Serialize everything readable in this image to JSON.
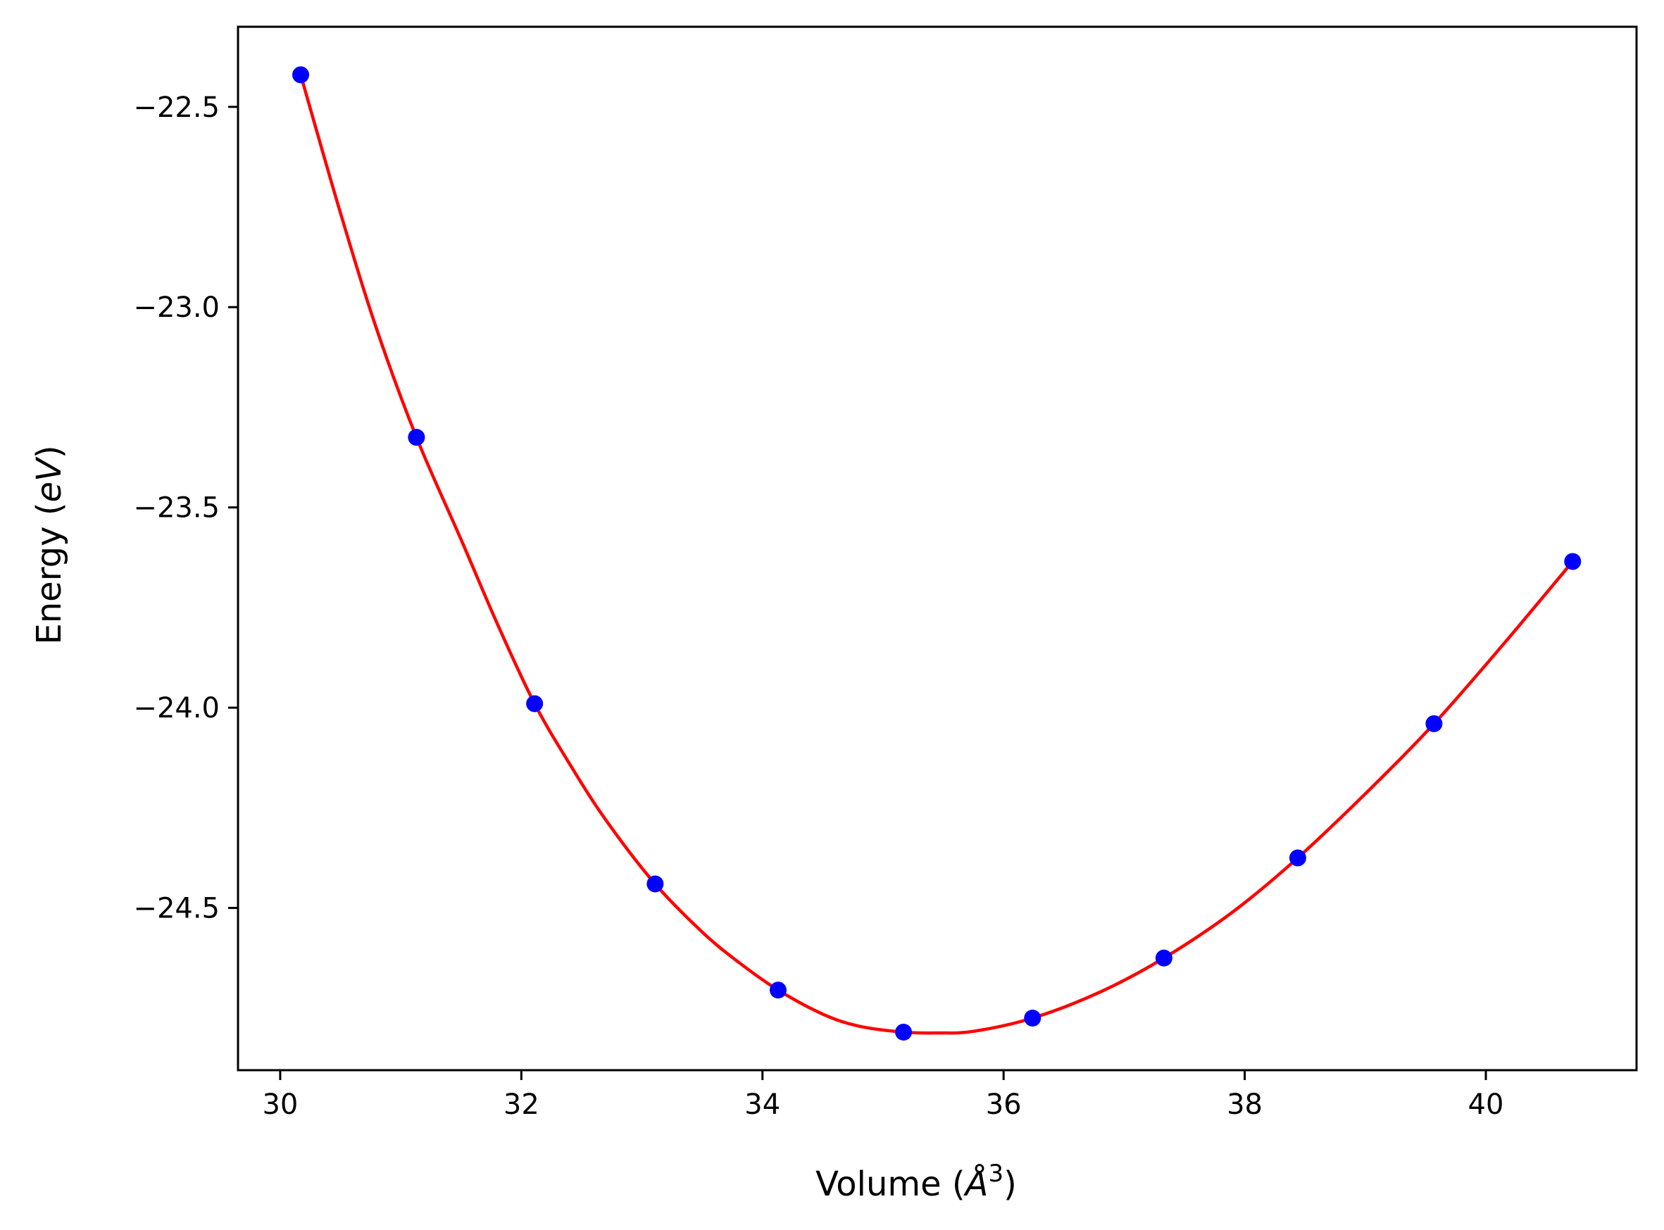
{
  "chart_data": {
    "type": "scatter",
    "xlabel": "Volume (",
    "xlabel_unit": "Å",
    "xlabel_sup": "3",
    "xlabel_end": ")",
    "ylabel": "Energy (",
    "ylabel_unit": "eV",
    "ylabel_end": ")",
    "xlim": [
      29.65,
      41.25
    ],
    "ylim": [
      -24.905,
      -22.3
    ],
    "x_ticks": [
      30,
      32,
      34,
      36,
      38,
      40
    ],
    "x_tick_labels": [
      "30",
      "32",
      "34",
      "36",
      "38",
      "40"
    ],
    "y_ticks": [
      -22.5,
      -23.0,
      -23.5,
      -24.0,
      -24.5
    ],
    "y_tick_labels": [
      "−22.5",
      "−23.0",
      "−23.5",
      "−24.0",
      "−24.5"
    ],
    "grid": false,
    "series": [
      {
        "kind": "points",
        "color": "#0000ff",
        "x": [
          30.17,
          31.13,
          32.11,
          33.11,
          34.13,
          35.17,
          36.24,
          37.33,
          38.44,
          39.57,
          40.72
        ],
        "y": [
          -22.42,
          -23.325,
          -23.99,
          -24.44,
          -24.705,
          -24.81,
          -24.775,
          -24.625,
          -24.375,
          -24.04,
          -23.635
        ]
      },
      {
        "kind": "fit",
        "color": "#ff0000",
        "x": [
          30.17,
          30.5,
          30.8,
          31.13,
          31.5,
          31.8,
          32.11,
          32.4,
          32.7,
          33.11,
          33.5,
          33.8,
          34.13,
          34.5,
          34.8,
          35.17,
          35.45,
          35.75,
          36.24,
          36.8,
          37.33,
          37.9,
          38.44,
          39.0,
          39.57,
          40.15,
          40.72
        ],
        "y": [
          -22.42,
          -22.765,
          -23.055,
          -23.325,
          -23.58,
          -23.79,
          -23.99,
          -24.14,
          -24.28,
          -24.44,
          -24.56,
          -24.635,
          -24.705,
          -24.765,
          -24.795,
          -24.81,
          -24.812,
          -24.808,
          -24.775,
          -24.71,
          -24.625,
          -24.51,
          -24.375,
          -24.215,
          -24.04,
          -23.84,
          -23.635
        ]
      }
    ]
  }
}
